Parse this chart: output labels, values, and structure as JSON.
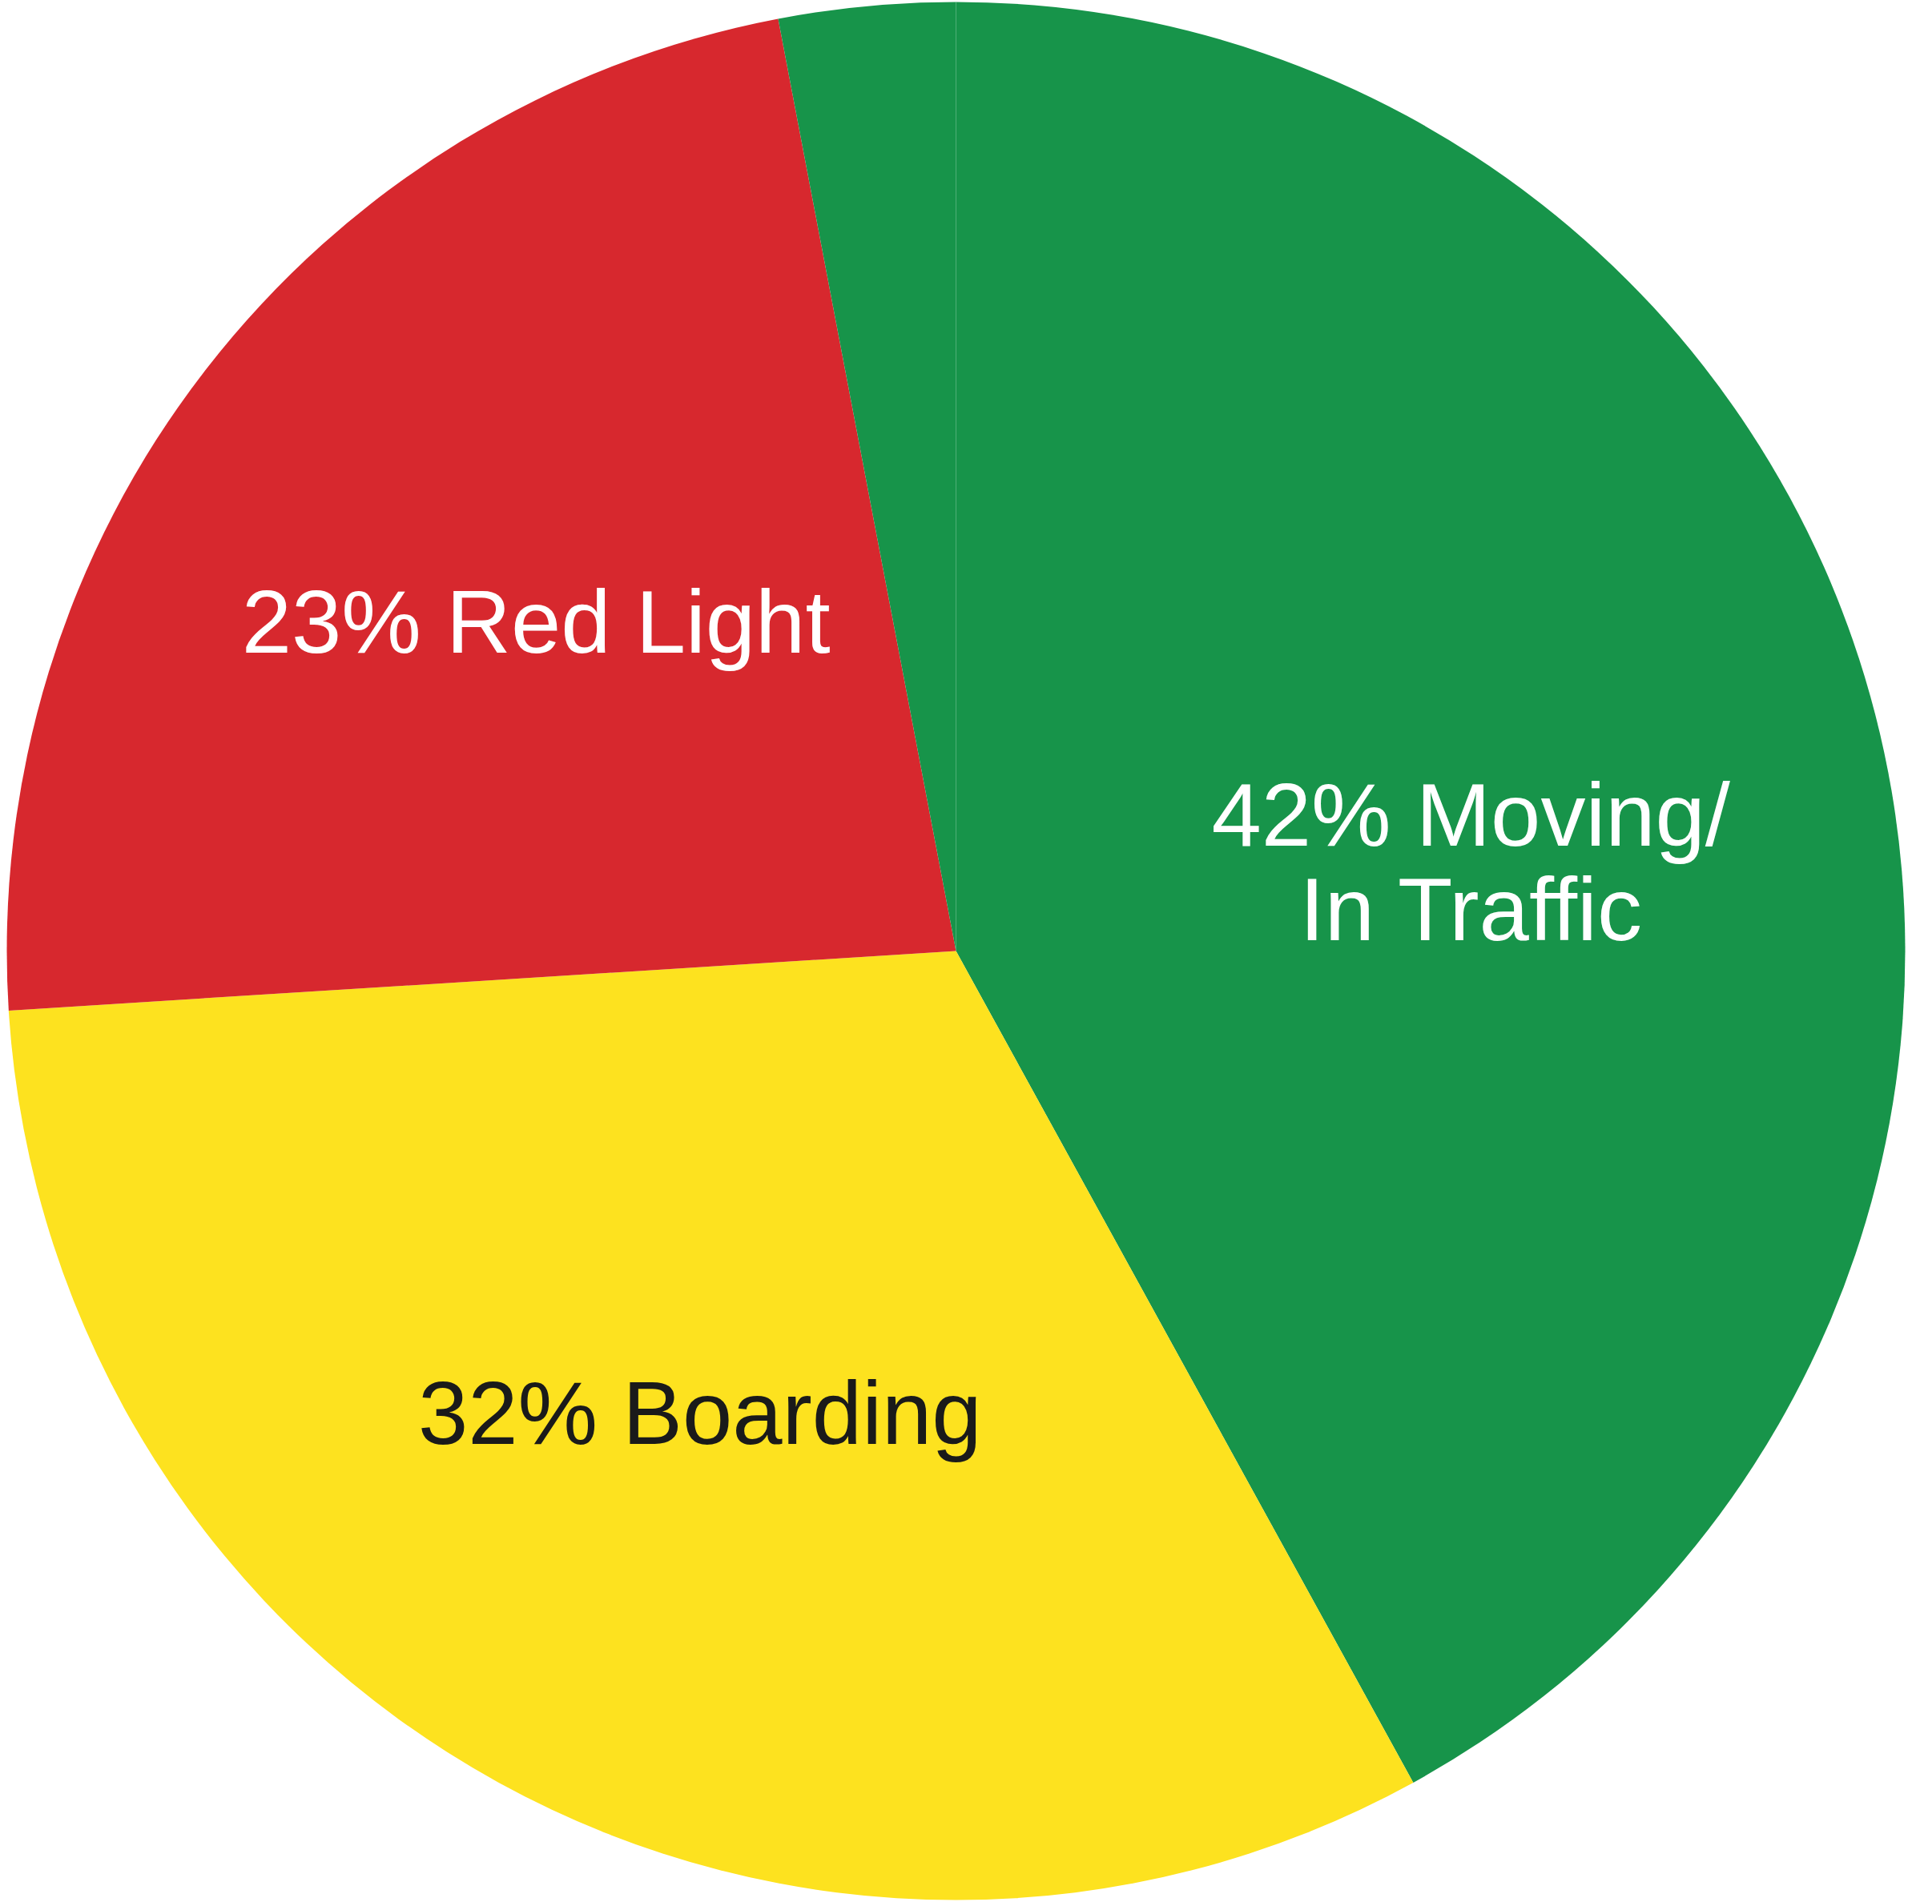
{
  "chart_data": {
    "type": "pie",
    "categories": [
      "Moving/\nIn Traffic",
      "Boarding",
      "Red Light",
      null
    ],
    "values": [
      42,
      32,
      23,
      3
    ],
    "value_labels": [
      "42%",
      "32%",
      "23%",
      null
    ],
    "colors": [
      "#17944a",
      "#fde21f",
      "#d7282e",
      "#17944a"
    ]
  }
}
